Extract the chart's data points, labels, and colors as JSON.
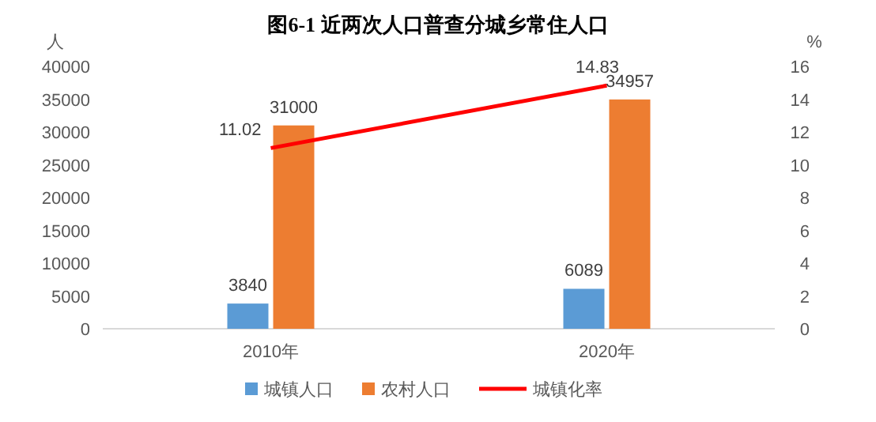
{
  "chart_data": {
    "type": "bar",
    "title": "图6-1  近两次人口普查分城乡常住人口",
    "ylabel": "人",
    "y2label": "%",
    "categories": [
      "2010年",
      "2020年"
    ],
    "series": [
      {
        "name": "城镇人口",
        "color": "#5b9bd5",
        "values": [
          3840,
          6089
        ]
      },
      {
        "name": "农村人口",
        "color": "#ed7d31",
        "values": [
          31000,
          34957
        ]
      },
      {
        "name": "城镇化率",
        "color": "#ff0000",
        "type": "line",
        "axis": "y2",
        "values": [
          11.02,
          14.83
        ]
      }
    ],
    "ylim": [
      0,
      40000
    ],
    "yticks": [
      0,
      5000,
      10000,
      15000,
      20000,
      25000,
      30000,
      35000,
      40000
    ],
    "y2lim": [
      0,
      16
    ],
    "y2ticks": [
      0,
      2,
      4,
      6,
      8,
      10,
      12,
      14,
      16
    ],
    "data_labels": true,
    "legend": "bottom",
    "grid": false,
    "marker": "none"
  }
}
